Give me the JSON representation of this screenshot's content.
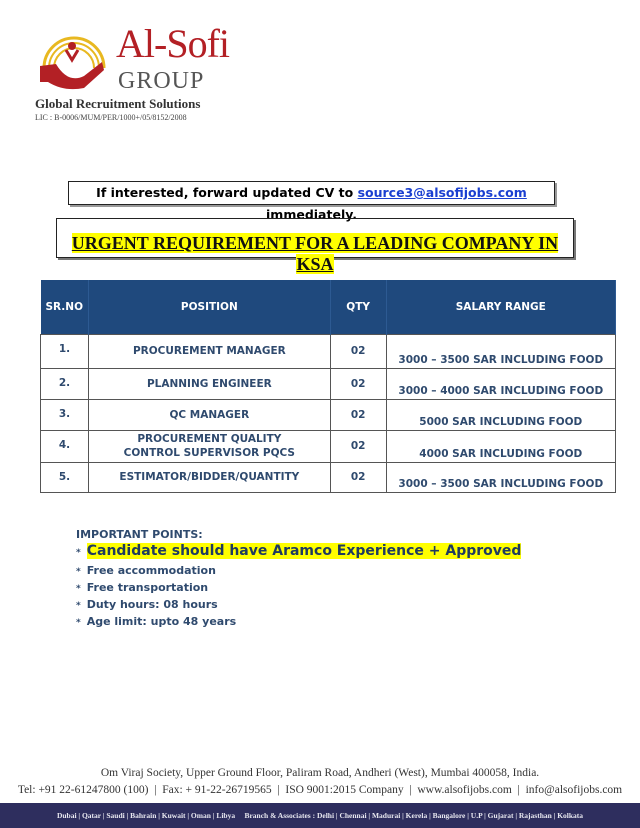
{
  "header": {
    "brand": "Al-Sofi",
    "group": "GROUP",
    "tagline": "Global Recruitment Solutions",
    "license": "LIC : B-0006/MUM/PER/1000+/05/8152/2008"
  },
  "notice": {
    "prefix": "If interested, forward updated CV to ",
    "email": "source3@alsofijobs.com",
    "suffix": " immediately."
  },
  "headline": "URGENT REQUIREMENT FOR A LEADING COMPANY IN KSA",
  "table": {
    "headers": [
      "SR.NO",
      "POSITION",
      "QTY",
      "SALARY RANGE"
    ],
    "rows": [
      {
        "sr": "1.",
        "position": "PROCUREMENT MANAGER",
        "qty": "02",
        "salary": "3000 – 3500 SAR INCLUDING FOOD"
      },
      {
        "sr": "2.",
        "position": "PLANNING ENGINEER",
        "qty": "02",
        "salary": "3000 – 4000 SAR  INCLUDING FOOD"
      },
      {
        "sr": "3.",
        "position": "QC MANAGER",
        "qty": "02",
        "salary": "5000 SAR INCLUDING FOOD"
      },
      {
        "sr": "4.",
        "position": "PROCUREMENT QUALITY CONTROL SUPERVISOR PQCS",
        "qty": "02",
        "salary": "4000 SAR INCLUDING FOOD"
      },
      {
        "sr": "5.",
        "position": "ESTIMATOR/BIDDER/QUANTITY",
        "qty": "02",
        "salary": "3000 – 3500 SAR   INCLUDING FOOD"
      }
    ]
  },
  "points": {
    "heading": "IMPORTANT POINTS:",
    "items": [
      "Candidate should have Aramco Experience + Approved",
      "Free accommodation",
      "Free transportation",
      "Duty hours: 08 hours",
      "Age limit: upto 48 years"
    ]
  },
  "footer": {
    "address": "Om Viraj Society, Upper Ground Floor, Paliram Road, Andheri (West), Mumbai 400058, India.",
    "contact": "Tel: +91 22-61247800 (100)  |  Fax: + 91-22-26719565  |  ISO 9001:2015 Company  |  www.alsofijobs.com  |  info@alsofijobs.com",
    "branches": "Dubai | Qatar | Saudi | Bahrain | Kuwait | Oman | Libya     Branch & Associates : Delhi | Chennai | Madurai | Kerela | Bangalore | U.P | Gujarat | Rajasthan | Kolkata"
  },
  "colors": {
    "brand_red": "#b32025",
    "header_blue": "#1f497d",
    "highlight": "#ffff00",
    "footer_bar": "#2e2e5e"
  }
}
